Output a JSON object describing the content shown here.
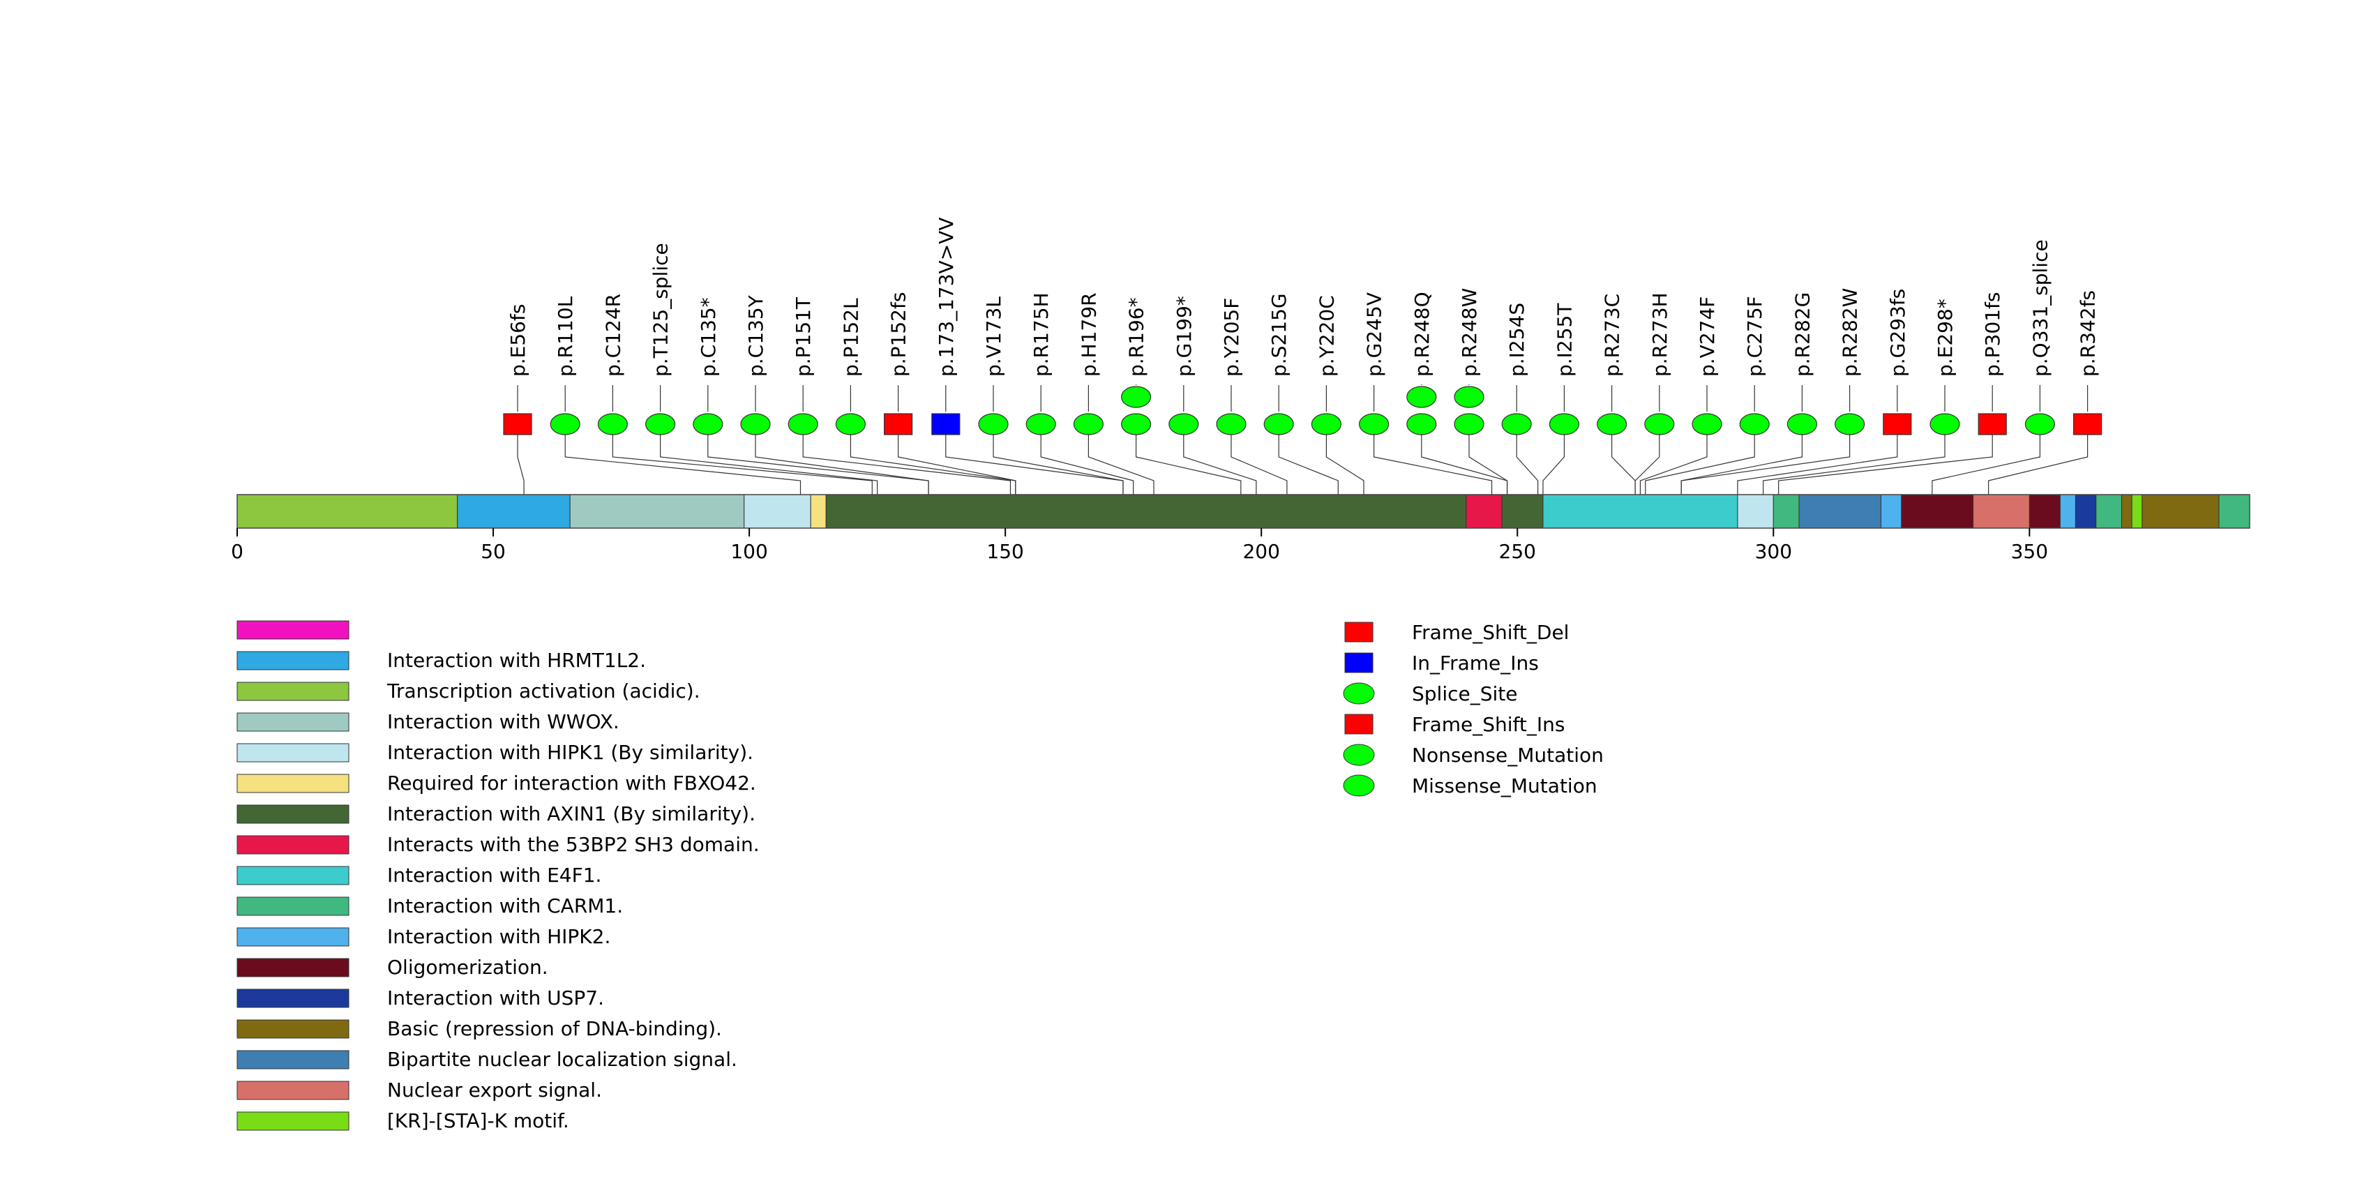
{
  "chart_data": {
    "type": "lollipop",
    "protein_length": 393,
    "xlim": [
      0,
      393
    ],
    "axis_ticks": [
      0,
      50,
      100,
      150,
      200,
      250,
      300,
      350
    ],
    "domains": [
      {
        "name": "Transcription activation (acidic).",
        "start": 0,
        "end": 43,
        "color": "#8DC63F"
      },
      {
        "name": "Interaction with HRMT1L2.",
        "start": 43,
        "end": 65,
        "color": "#2EA9E1"
      },
      {
        "name": "Interaction with WWOX.",
        "start": 65,
        "end": 99,
        "color": "#9ECAC1"
      },
      {
        "name": "Interaction with HIPK1 (By similarity).",
        "start": 99,
        "end": 112,
        "color": "#BFE5EF"
      },
      {
        "name": "Required for interaction with FBXO42.",
        "start": 112,
        "end": 115,
        "color": "#F5E17F"
      },
      {
        "name": "Interaction with AXIN1 (By similarity).",
        "start": 115,
        "end": 240,
        "color": "#436734"
      },
      {
        "name": "Interacts with the 53BP2 SH3 domain.",
        "start": 240,
        "end": 247,
        "color": "#E8174A"
      },
      {
        "name": "Interaction with AXIN1 (By similarity).",
        "start": 247,
        "end": 255,
        "color": "#436734"
      },
      {
        "name": "Interaction with E4F1.",
        "start": 255,
        "end": 293,
        "color": "#3CCCCC"
      },
      {
        "name": "Interaction with HIPK1 (By similarity).",
        "start": 293,
        "end": 300,
        "color": "#BFE5EF"
      },
      {
        "name": "Interaction with CARM1.",
        "start": 300,
        "end": 305,
        "color": "#40B87F"
      },
      {
        "name": "Bipartite nuclear localization signal.",
        "start": 305,
        "end": 321,
        "color": "#3E7EB3"
      },
      {
        "name": "Interaction with HIPK2.",
        "start": 321,
        "end": 325,
        "color": "#4FB2EC"
      },
      {
        "name": "Oligomerization.",
        "start": 325,
        "end": 339,
        "color": "#6B0C1E"
      },
      {
        "name": "Nuclear export signal.",
        "start": 339,
        "end": 350,
        "color": "#D8706A"
      },
      {
        "name": "Oligomerization.",
        "start": 350,
        "end": 356,
        "color": "#6B0C1E"
      },
      {
        "name": "Interaction with HIPK2.",
        "start": 356,
        "end": 359,
        "color": "#4FB2EC"
      },
      {
        "name": "Interaction with USP7.",
        "start": 359,
        "end": 363,
        "color": "#1B3A9C"
      },
      {
        "name": "Interaction with CARM1.",
        "start": 363,
        "end": 368,
        "color": "#40B87F"
      },
      {
        "name": "Basic (repression of DNA-binding).",
        "start": 368,
        "end": 370,
        "color": "#7F6A12"
      },
      {
        "name": "[KR]-[STA]-K motif.",
        "start": 370,
        "end": 372,
        "color": "#79DD16"
      },
      {
        "name": "Basic (repression of DNA-binding).",
        "start": 372,
        "end": 387,
        "color": "#7F6A12"
      },
      {
        "name": "Interaction with CARM1.",
        "start": 387,
        "end": 393,
        "color": "#40B87F"
      }
    ],
    "mutations": [
      {
        "label": "p.E56fs",
        "pos": 56,
        "type": "Frame_Shift_Del",
        "count": 1
      },
      {
        "label": "p.R110L",
        "pos": 110,
        "type": "Missense_Mutation",
        "count": 1
      },
      {
        "label": "p.C124R",
        "pos": 124,
        "type": "Missense_Mutation",
        "count": 1
      },
      {
        "label": "p.T125_splice",
        "pos": 125,
        "type": "Splice_Site",
        "count": 1
      },
      {
        "label": "p.C135*",
        "pos": 135,
        "type": "Nonsense_Mutation",
        "count": 1
      },
      {
        "label": "p.C135Y",
        "pos": 135,
        "type": "Missense_Mutation",
        "count": 1
      },
      {
        "label": "p.P151T",
        "pos": 151,
        "type": "Missense_Mutation",
        "count": 1
      },
      {
        "label": "p.P152L",
        "pos": 152,
        "type": "Missense_Mutation",
        "count": 1
      },
      {
        "label": "p.P152fs",
        "pos": 152,
        "type": "Frame_Shift_Del",
        "count": 1
      },
      {
        "label": "p.173_173V>VV",
        "pos": 173,
        "type": "In_Frame_Ins",
        "count": 1
      },
      {
        "label": "p.V173L",
        "pos": 173,
        "type": "Missense_Mutation",
        "count": 1
      },
      {
        "label": "p.R175H",
        "pos": 175,
        "type": "Missense_Mutation",
        "count": 1
      },
      {
        "label": "p.H179R",
        "pos": 179,
        "type": "Missense_Mutation",
        "count": 1
      },
      {
        "label": "p.R196*",
        "pos": 196,
        "type": "Nonsense_Mutation",
        "count": 2
      },
      {
        "label": "p.G199*",
        "pos": 199,
        "type": "Nonsense_Mutation",
        "count": 1
      },
      {
        "label": "p.Y205F",
        "pos": 205,
        "type": "Missense_Mutation",
        "count": 1
      },
      {
        "label": "p.S215G",
        "pos": 215,
        "type": "Missense_Mutation",
        "count": 1
      },
      {
        "label": "p.Y220C",
        "pos": 220,
        "type": "Missense_Mutation",
        "count": 1
      },
      {
        "label": "p.G245V",
        "pos": 245,
        "type": "Missense_Mutation",
        "count": 1
      },
      {
        "label": "p.R248Q",
        "pos": 248,
        "type": "Missense_Mutation",
        "count": 2
      },
      {
        "label": "p.R248W",
        "pos": 248,
        "type": "Missense_Mutation",
        "count": 2
      },
      {
        "label": "p.I254S",
        "pos": 254,
        "type": "Missense_Mutation",
        "count": 1
      },
      {
        "label": "p.I255T",
        "pos": 255,
        "type": "Missense_Mutation",
        "count": 1
      },
      {
        "label": "p.R273C",
        "pos": 273,
        "type": "Missense_Mutation",
        "count": 1
      },
      {
        "label": "p.R273H",
        "pos": 273,
        "type": "Missense_Mutation",
        "count": 1
      },
      {
        "label": "p.V274F",
        "pos": 274,
        "type": "Missense_Mutation",
        "count": 1
      },
      {
        "label": "p.C275F",
        "pos": 275,
        "type": "Missense_Mutation",
        "count": 1
      },
      {
        "label": "p.R282G",
        "pos": 282,
        "type": "Missense_Mutation",
        "count": 1
      },
      {
        "label": "p.R282W",
        "pos": 282,
        "type": "Missense_Mutation",
        "count": 1
      },
      {
        "label": "p.G293fs",
        "pos": 293,
        "type": "Frame_Shift_Del",
        "count": 1
      },
      {
        "label": "p.E298*",
        "pos": 298,
        "type": "Nonsense_Mutation",
        "count": 1
      },
      {
        "label": "p.P301fs",
        "pos": 301,
        "type": "Frame_Shift_Del",
        "count": 1
      },
      {
        "label": "p.Q331_splice",
        "pos": 331,
        "type": "Splice_Site",
        "count": 1
      },
      {
        "label": "p.R342fs",
        "pos": 342,
        "type": "Frame_Shift_Del",
        "count": 1
      }
    ],
    "domain_legend": [
      {
        "label": "",
        "color": "#F012BE"
      },
      {
        "label": "Interaction with HRMT1L2.",
        "color": "#2EA9E1"
      },
      {
        "label": "Transcription activation (acidic).",
        "color": "#8DC63F"
      },
      {
        "label": "Interaction with WWOX.",
        "color": "#9ECAC1"
      },
      {
        "label": "Interaction with HIPK1 (By similarity).",
        "color": "#BFE5EF"
      },
      {
        "label": "Required for interaction with FBXO42.",
        "color": "#F5E17F"
      },
      {
        "label": "Interaction with AXIN1 (By similarity).",
        "color": "#436734"
      },
      {
        "label": "Interacts with the 53BP2 SH3 domain.",
        "color": "#E8174A"
      },
      {
        "label": "Interaction with E4F1.",
        "color": "#3CCCCC"
      },
      {
        "label": "Interaction with CARM1.",
        "color": "#40B87F"
      },
      {
        "label": "Interaction with HIPK2.",
        "color": "#4FB2EC"
      },
      {
        "label": "Oligomerization.",
        "color": "#6B0C1E"
      },
      {
        "label": "Interaction with USP7.",
        "color": "#1B3A9C"
      },
      {
        "label": "Basic (repression of DNA-binding).",
        "color": "#7F6A12"
      },
      {
        "label": "Bipartite nuclear localization signal.",
        "color": "#3E7EB3"
      },
      {
        "label": "Nuclear export signal.",
        "color": "#D8706A"
      },
      {
        "label": "[KR]-[STA]-K motif.",
        "color": "#79DD16"
      }
    ],
    "mutation_legend": [
      {
        "label": "Frame_Shift_Del",
        "shape": "square",
        "color": "#FF0000"
      },
      {
        "label": "In_Frame_Ins",
        "shape": "square",
        "color": "#0000FF"
      },
      {
        "label": "Splice_Site",
        "shape": "ellipse",
        "color": "#00FF00"
      },
      {
        "label": "Frame_Shift_Ins",
        "shape": "square",
        "color": "#FF0000"
      },
      {
        "label": "Nonsense_Mutation",
        "shape": "ellipse",
        "color": "#00FF00"
      },
      {
        "label": "Missense_Mutation",
        "shape": "ellipse",
        "color": "#00FF00"
      }
    ]
  }
}
